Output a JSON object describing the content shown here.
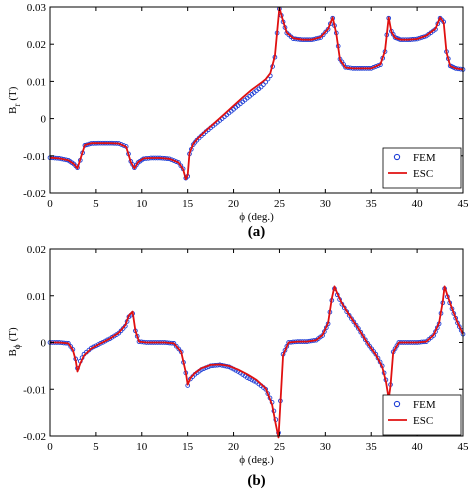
{
  "chart_data": [
    {
      "type": "line",
      "panel_label": "(a)",
      "xlabel": "ϕ (deg.)",
      "ylabel_main": "B",
      "ylabel_sub": "r",
      "ylabel_unit": "(T)",
      "xlim": [
        0,
        45
      ],
      "ylim": [
        -0.02,
        0.03
      ],
      "xticks": [
        "0",
        "5",
        "10",
        "15",
        "20",
        "25",
        "30",
        "35",
        "40",
        "45"
      ],
      "xtick_values": [
        0,
        5,
        10,
        15,
        20,
        25,
        30,
        35,
        40,
        45
      ],
      "yticks": [
        "-0.02",
        "-0.01",
        "0",
        "0.01",
        "0.02",
        "0.03"
      ],
      "ytick_values": [
        -0.02,
        -0.01,
        0,
        0.01,
        0.02,
        0.03
      ],
      "grid": false,
      "legend_position": "bottom-right",
      "series": [
        {
          "name": "FEM",
          "style": "markers",
          "color": "#1f3fd6",
          "x": [
            0,
            1,
            2,
            2.6,
            3,
            3.3,
            3.8,
            4.5,
            5.5,
            6.5,
            7.5,
            8.3,
            8.8,
            9.2,
            9.6,
            10.2,
            11,
            12,
            13,
            14,
            14.5,
            14.8,
            15,
            15.2,
            15.6,
            16,
            17,
            18,
            19,
            20,
            21,
            22,
            23,
            23.5,
            24,
            24.5,
            25,
            25.4,
            25.8,
            26.5,
            27.5,
            28.5,
            29.5,
            30.3,
            30.8,
            31.2,
            31.6,
            32.2,
            33,
            34,
            35,
            36,
            36.5,
            36.9,
            37.2,
            37.6,
            38.2,
            39,
            40,
            41,
            42,
            42.5,
            42.9,
            43.2,
            43.6,
            44.2,
            45
          ],
          "y": [
            -0.0105,
            -0.0107,
            -0.0112,
            -0.0122,
            -0.0132,
            -0.0112,
            -0.0072,
            -0.0067,
            -0.0066,
            -0.0066,
            -0.0067,
            -0.0075,
            -0.0115,
            -0.0132,
            -0.0118,
            -0.0108,
            -0.0106,
            -0.0106,
            -0.0108,
            -0.0118,
            -0.0135,
            -0.016,
            -0.0155,
            -0.0095,
            -0.007,
            -0.0058,
            -0.0035,
            -0.0015,
            0.0005,
            0.0025,
            0.0045,
            0.0065,
            0.0085,
            0.0098,
            0.0115,
            0.0165,
            0.0295,
            0.026,
            0.023,
            0.0215,
            0.0212,
            0.0212,
            0.0218,
            0.024,
            0.027,
            0.023,
            0.016,
            0.0138,
            0.0135,
            0.0135,
            0.0135,
            0.0145,
            0.018,
            0.027,
            0.0235,
            0.0218,
            0.0212,
            0.0212,
            0.0214,
            0.0222,
            0.024,
            0.027,
            0.026,
            0.018,
            0.0142,
            0.0135,
            0.0132
          ]
        },
        {
          "name": "ESC",
          "style": "line",
          "color": "#e01010",
          "x": [
            0,
            1,
            2,
            2.6,
            3,
            3.3,
            3.8,
            4.5,
            5.5,
            6.5,
            7.5,
            8.3,
            8.8,
            9.2,
            9.6,
            10.2,
            11,
            12,
            13,
            14,
            14.5,
            14.8,
            15,
            15.2,
            15.6,
            16,
            17,
            18,
            19,
            20,
            21,
            22,
            23,
            23.5,
            24,
            24.5,
            25,
            25.4,
            25.8,
            26.5,
            27.5,
            28.5,
            29.5,
            30.3,
            30.8,
            31.2,
            31.6,
            32.2,
            33,
            34,
            35,
            36,
            36.5,
            36.9,
            37.2,
            37.6,
            38.2,
            39,
            40,
            41,
            42,
            42.5,
            42.9,
            43.2,
            43.6,
            44.2,
            45
          ],
          "y": [
            -0.0105,
            -0.0107,
            -0.0112,
            -0.0122,
            -0.0134,
            -0.011,
            -0.0071,
            -0.0066,
            -0.0066,
            -0.0066,
            -0.0067,
            -0.0076,
            -0.0117,
            -0.0134,
            -0.0117,
            -0.0107,
            -0.0106,
            -0.0106,
            -0.0108,
            -0.0118,
            -0.0136,
            -0.0163,
            -0.0152,
            -0.0093,
            -0.0068,
            -0.0056,
            -0.0032,
            -0.001,
            0.0012,
            0.0035,
            0.0057,
            0.0078,
            0.0096,
            0.0106,
            0.0122,
            0.0168,
            0.0298,
            0.0262,
            0.0231,
            0.0216,
            0.0212,
            0.0212,
            0.0219,
            0.0241,
            0.0272,
            0.0228,
            0.0158,
            0.0137,
            0.0135,
            0.0135,
            0.0135,
            0.0146,
            0.0182,
            0.0272,
            0.0233,
            0.0217,
            0.0212,
            0.0212,
            0.0214,
            0.0223,
            0.0242,
            0.0272,
            0.0258,
            0.0178,
            0.0141,
            0.0135,
            0.0132
          ]
        }
      ]
    },
    {
      "type": "line",
      "panel_label": "(b)",
      "xlabel": "ϕ (deg.)",
      "ylabel_main": "B",
      "ylabel_sub": "ϕ",
      "ylabel_unit": "(T)",
      "xlim": [
        0,
        45
      ],
      "ylim": [
        -0.02,
        0.02
      ],
      "xticks": [
        "0",
        "5",
        "10",
        "15",
        "20",
        "25",
        "30",
        "35",
        "40",
        "45"
      ],
      "xtick_values": [
        0,
        5,
        10,
        15,
        20,
        25,
        30,
        35,
        40,
        45
      ],
      "yticks": [
        "-0.02",
        "-0.01",
        "0",
        "0.01",
        "0.02"
      ],
      "ytick_values": [
        -0.02,
        -0.01,
        0,
        0.01,
        0.02
      ],
      "grid": false,
      "legend_position": "bottom-right",
      "series": [
        {
          "name": "FEM",
          "style": "markers",
          "color": "#1f3fd6",
          "x": [
            0,
            1,
            2,
            2.5,
            2.8,
            3,
            3.3,
            3.7,
            4.5,
            5.5,
            6.5,
            7.5,
            8.2,
            8.6,
            9,
            9.3,
            9.7,
            10.5,
            11.5,
            12.5,
            13.5,
            14.3,
            14.8,
            15,
            15.3,
            15.8,
            16.5,
            17.5,
            18.5,
            19.5,
            20.5,
            21.5,
            22.5,
            23.5,
            24.2,
            24.6,
            24.9,
            25.1,
            25.4,
            26,
            27,
            28,
            29,
            29.7,
            30.3,
            30.7,
            31,
            31.3,
            31.8,
            32.6,
            33.6,
            34.6,
            35.5,
            36.2,
            36.6,
            36.9,
            37.1,
            37.4,
            38,
            39,
            40,
            41,
            41.8,
            42.4,
            42.8,
            43,
            43.3,
            43.8,
            44.4,
            45
          ],
          "y": [
            0,
            0,
            -0.0002,
            -0.0015,
            -0.0035,
            -0.0055,
            -0.004,
            -0.0025,
            -0.0012,
            -0.0002,
            0.0008,
            0.002,
            0.0035,
            0.0055,
            0.0062,
            0.0025,
            0.0002,
            0,
            0,
            0,
            -0.0002,
            -0.002,
            -0.0065,
            -0.0092,
            -0.0078,
            -0.0068,
            -0.0058,
            -0.005,
            -0.0048,
            -0.0052,
            -0.0062,
            -0.0075,
            -0.0085,
            -0.01,
            -0.0128,
            -0.0165,
            -0.0193,
            -0.0125,
            -0.0025,
            0,
            0.0002,
            0.0002,
            0.0005,
            0.0015,
            0.004,
            0.009,
            0.0115,
            0.0102,
            0.0082,
            0.0058,
            0.003,
            -0.0002,
            -0.0025,
            -0.005,
            -0.008,
            -0.0115,
            -0.009,
            -0.002,
            0,
            0,
            0,
            0.0002,
            0.0015,
            0.004,
            0.0085,
            0.0115,
            0.0098,
            0.0072,
            0.0042,
            0.0018
          ]
        },
        {
          "name": "ESC",
          "style": "line",
          "color": "#e01010",
          "x": [
            0,
            1,
            2,
            2.5,
            2.8,
            3,
            3.3,
            3.7,
            4.5,
            5.5,
            6.5,
            7.5,
            8.2,
            8.6,
            9,
            9.3,
            9.7,
            10.5,
            11.5,
            12.5,
            13.5,
            14.3,
            14.8,
            15,
            15.3,
            15.8,
            16.5,
            17.5,
            18.5,
            19.5,
            20.5,
            21.5,
            22.5,
            23.5,
            24.2,
            24.6,
            24.9,
            25.1,
            25.4,
            26,
            27,
            28,
            29,
            29.7,
            30.3,
            30.7,
            31,
            31.3,
            31.8,
            32.6,
            33.6,
            34.6,
            35.5,
            36.2,
            36.6,
            36.9,
            37.1,
            37.4,
            38,
            39,
            40,
            41,
            41.8,
            42.4,
            42.8,
            43,
            43.3,
            43.8,
            44.4,
            45
          ],
          "y": [
            0,
            0,
            -0.0002,
            -0.0016,
            -0.0038,
            -0.0062,
            -0.0045,
            -0.0028,
            -0.0013,
            -0.0002,
            0.0008,
            0.0021,
            0.0037,
            0.0058,
            0.0066,
            0.0025,
            0.0002,
            0,
            0,
            0,
            -0.0002,
            -0.002,
            -0.0064,
            -0.009,
            -0.0076,
            -0.0065,
            -0.0055,
            -0.0048,
            -0.0047,
            -0.005,
            -0.0058,
            -0.0068,
            -0.008,
            -0.0098,
            -0.0133,
            -0.0175,
            -0.0203,
            -0.013,
            -0.0027,
            0,
            0.0002,
            0.0002,
            0.0005,
            0.0016,
            0.0042,
            0.0094,
            0.012,
            0.0105,
            0.0084,
            0.0059,
            0.003,
            -0.0002,
            -0.0026,
            -0.0052,
            -0.0083,
            -0.012,
            -0.0093,
            -0.0021,
            0,
            0,
            0,
            0.0002,
            0.0016,
            0.0042,
            0.0088,
            0.012,
            0.0101,
            0.0073,
            0.0043,
            0.0018
          ]
        }
      ]
    }
  ]
}
